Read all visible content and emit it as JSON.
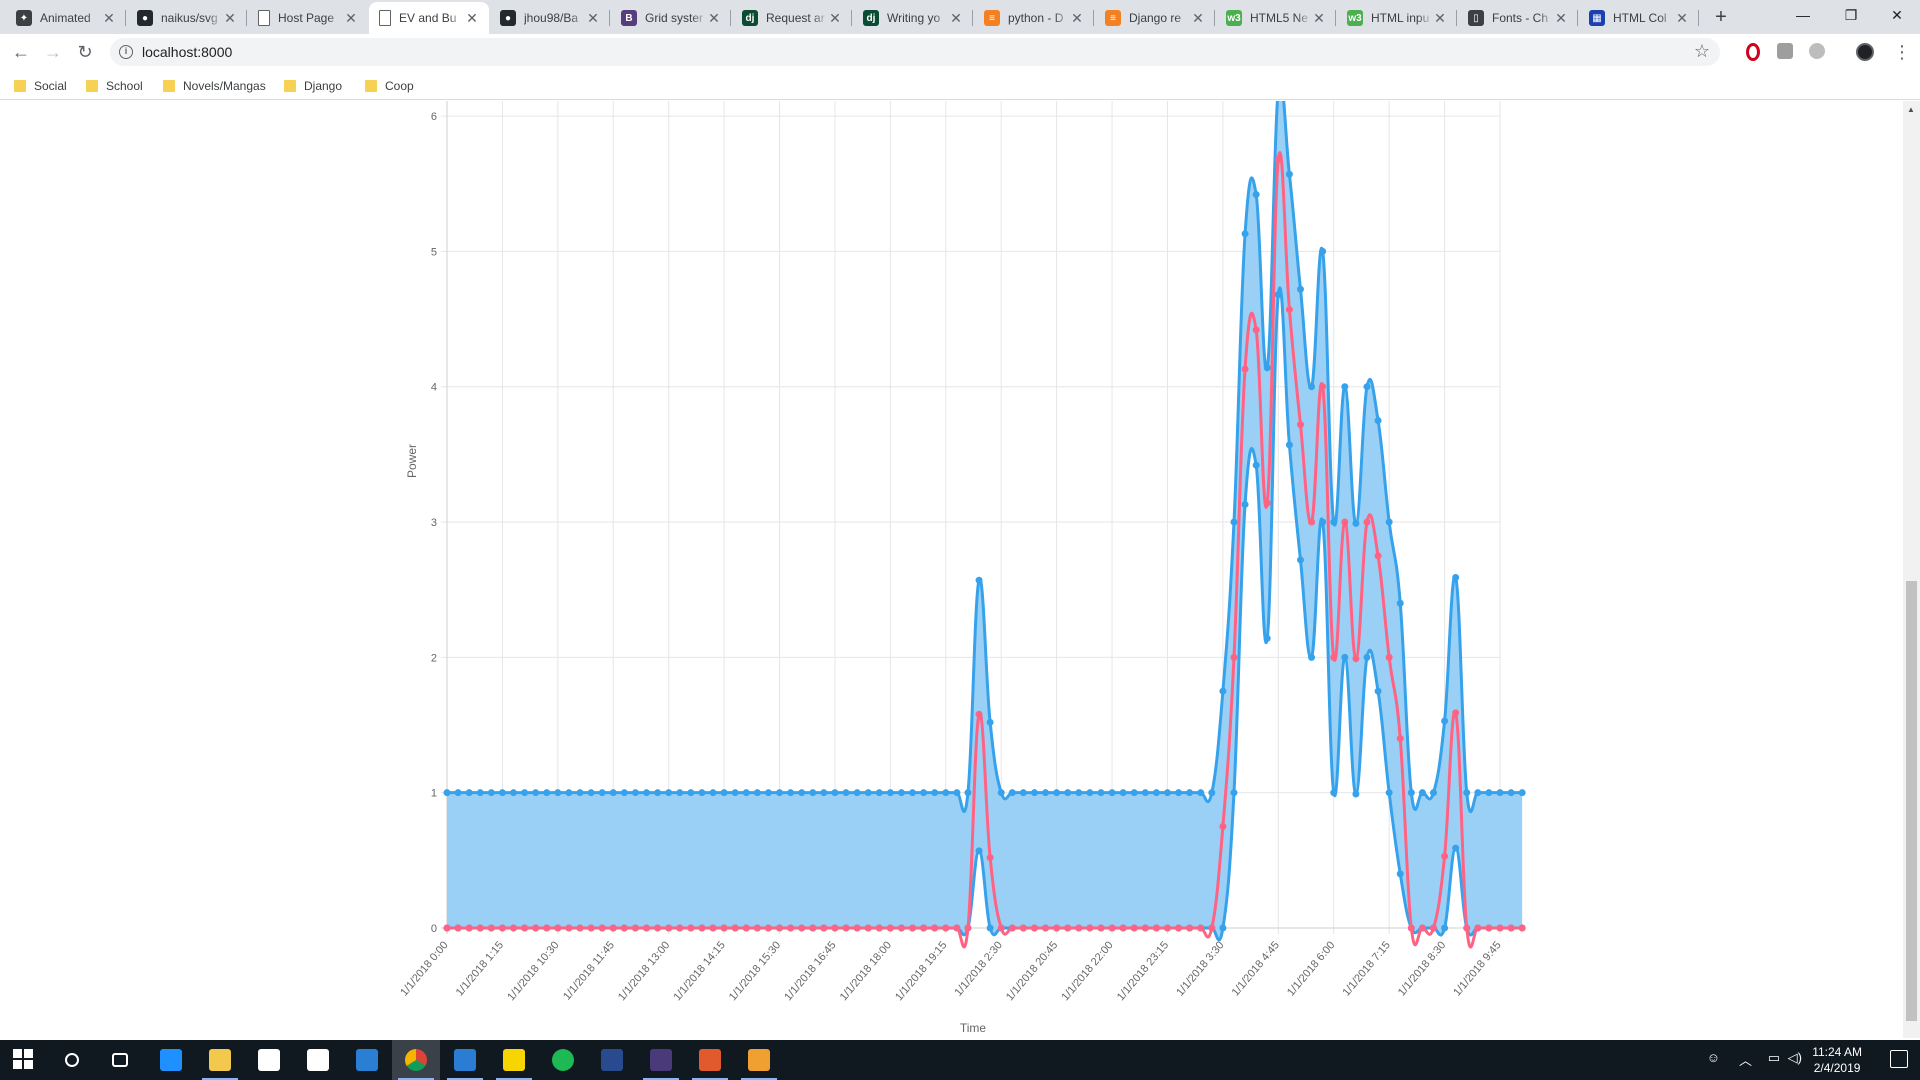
{
  "browser": {
    "tabs": [
      {
        "title": "Animated",
        "icon": "codepen-icon",
        "color": "#3c4043",
        "glyph": "✦"
      },
      {
        "title": "naikus/svg",
        "icon": "github-icon",
        "color": "#24292e",
        "glyph": "●"
      },
      {
        "title": "Host Page",
        "icon": "page-icon",
        "color": "#ffffff",
        "glyph": ""
      },
      {
        "title": "EV and Bu",
        "icon": "page-icon",
        "color": "#ffffff",
        "glyph": "",
        "active": true
      },
      {
        "title": "jhou98/Ba",
        "icon": "github-icon",
        "color": "#24292e",
        "glyph": "●"
      },
      {
        "title": "Grid syster",
        "icon": "bootstrap-icon",
        "color": "#563d7c",
        "glyph": "B"
      },
      {
        "title": "Request ar",
        "icon": "django-icon",
        "color": "#0c4b33",
        "glyph": "dj"
      },
      {
        "title": "Writing yo",
        "icon": "django-icon",
        "color": "#0c4b33",
        "glyph": "dj"
      },
      {
        "title": "python - D",
        "icon": "stackoverflow-icon",
        "color": "#f48024",
        "glyph": "≡"
      },
      {
        "title": "Django re",
        "icon": "stackoverflow-icon",
        "color": "#f48024",
        "glyph": "≡"
      },
      {
        "title": "HTML5 Ne",
        "icon": "w3schools-icon",
        "color": "#4caf50",
        "glyph": "w3"
      },
      {
        "title": "HTML inpu",
        "icon": "w3schools-icon",
        "color": "#4caf50",
        "glyph": "w3"
      },
      {
        "title": "Fonts - Ch",
        "icon": "book-icon",
        "color": "#3c4043",
        "glyph": "▯"
      },
      {
        "title": "HTML Col",
        "icon": "htmlcolor-icon",
        "color": "#1a3fb0",
        "glyph": "▦"
      }
    ],
    "url": "localhost:8000",
    "bookmarks": [
      "Social",
      "School",
      "Novels/Mangas",
      "Django",
      "Coop"
    ]
  },
  "chart_data": {
    "type": "line",
    "xlabel": "Time",
    "ylabel": "Power",
    "ylim": [
      0,
      6.2
    ],
    "yticks": [
      0,
      1,
      2,
      3,
      4,
      5,
      6
    ],
    "x_tick_labels": [
      "1/1/2018 0:00",
      "1/1/2018 1:15",
      "1/1/2018 10:30",
      "1/1/2018 11:45",
      "1/1/2018 13:00",
      "1/1/2018 14:15",
      "1/1/2018 15:30",
      "1/1/2018 16:45",
      "1/1/2018 18:00",
      "1/1/2018 19:15",
      "1/1/2018 2:30",
      "1/1/2018 20:45",
      "1/1/2018 22:00",
      "1/1/2018 23:15",
      "1/1/2018 3:30",
      "1/1/2018 4:45",
      "1/1/2018 6:00",
      "1/1/2018 7:15",
      "1/1/2018 8:30",
      "1/1/2018 9:45"
    ],
    "x_point_count": 96,
    "grid": true,
    "colors": {
      "band": "#36a2eb",
      "band_fill": "#9ad0f5",
      "mean": "#ff6384"
    },
    "series": [
      {
        "role": "upper",
        "color": "#36a2eb",
        "values": [
          1,
          1,
          1,
          1,
          1,
          1,
          1,
          1,
          1,
          1,
          1,
          1,
          1,
          1,
          1,
          1,
          1,
          1,
          1,
          1,
          1,
          1,
          1,
          1,
          1,
          1,
          1,
          1,
          1,
          1,
          1,
          1,
          1,
          1,
          1,
          1,
          1,
          1,
          1,
          1,
          1,
          1,
          1,
          1,
          1,
          1,
          1,
          1,
          2.57,
          1.52,
          1,
          1,
          1,
          1,
          1,
          1,
          1,
          1,
          1,
          1,
          1,
          1,
          1,
          1,
          1,
          1,
          1,
          1,
          1,
          1,
          1.75,
          3,
          5.13,
          5.42,
          4.14,
          6.2,
          5.57,
          4.72,
          4,
          5,
          3,
          4,
          2.99,
          4,
          3.75,
          3,
          2.4,
          1,
          1,
          1,
          1.53,
          2.59,
          1,
          1,
          1,
          1,
          1,
          1
        ]
      },
      {
        "role": "mean",
        "color": "#ff6384",
        "values": [
          0,
          0,
          0,
          0,
          0,
          0,
          0,
          0,
          0,
          0,
          0,
          0,
          0,
          0,
          0,
          0,
          0,
          0,
          0,
          0,
          0,
          0,
          0,
          0,
          0,
          0,
          0,
          0,
          0,
          0,
          0,
          0,
          0,
          0,
          0,
          0,
          0,
          0,
          0,
          0,
          0,
          0,
          0,
          0,
          0,
          0,
          0,
          0,
          1.58,
          0.52,
          0,
          0,
          0,
          0,
          0,
          0,
          0,
          0,
          0,
          0,
          0,
          0,
          0,
          0,
          0,
          0,
          0,
          0,
          0,
          0,
          0.75,
          2,
          4.13,
          4.42,
          3.14,
          5.68,
          4.57,
          3.72,
          3,
          4,
          2,
          3,
          1.99,
          3,
          2.75,
          2,
          1.4,
          0,
          0,
          0,
          0.53,
          1.59,
          0,
          0,
          0,
          0,
          0,
          0
        ]
      },
      {
        "role": "lower",
        "color": "#36a2eb",
        "values": [
          0,
          0,
          0,
          0,
          0,
          0,
          0,
          0,
          0,
          0,
          0,
          0,
          0,
          0,
          0,
          0,
          0,
          0,
          0,
          0,
          0,
          0,
          0,
          0,
          0,
          0,
          0,
          0,
          0,
          0,
          0,
          0,
          0,
          0,
          0,
          0,
          0,
          0,
          0,
          0,
          0,
          0,
          0,
          0,
          0,
          0,
          0,
          0,
          0.57,
          0,
          0,
          0,
          0,
          0,
          0,
          0,
          0,
          0,
          0,
          0,
          0,
          0,
          0,
          0,
          0,
          0,
          0,
          0,
          0,
          0,
          0,
          1,
          3.13,
          3.42,
          2.14,
          4.68,
          3.57,
          2.72,
          2,
          3,
          1,
          2,
          0.99,
          2,
          1.75,
          1,
          0.4,
          0,
          0,
          0,
          0,
          0.59,
          0,
          0,
          0,
          0,
          0,
          0
        ]
      }
    ]
  },
  "taskbar": {
    "apps": [
      "start-icon",
      "search-icon",
      "task-view-icon",
      "edge-icon",
      "file-explorer-icon",
      "store-icon",
      "mail-icon",
      "rdp-icon",
      "chrome-icon",
      "vscode-icon",
      "sticky-notes-icon",
      "spotify-icon",
      "powershell-icon",
      "visual-studio-icon",
      "git-icon",
      "paint-icon"
    ],
    "time": "11:24 AM",
    "date": "2/4/2019"
  }
}
